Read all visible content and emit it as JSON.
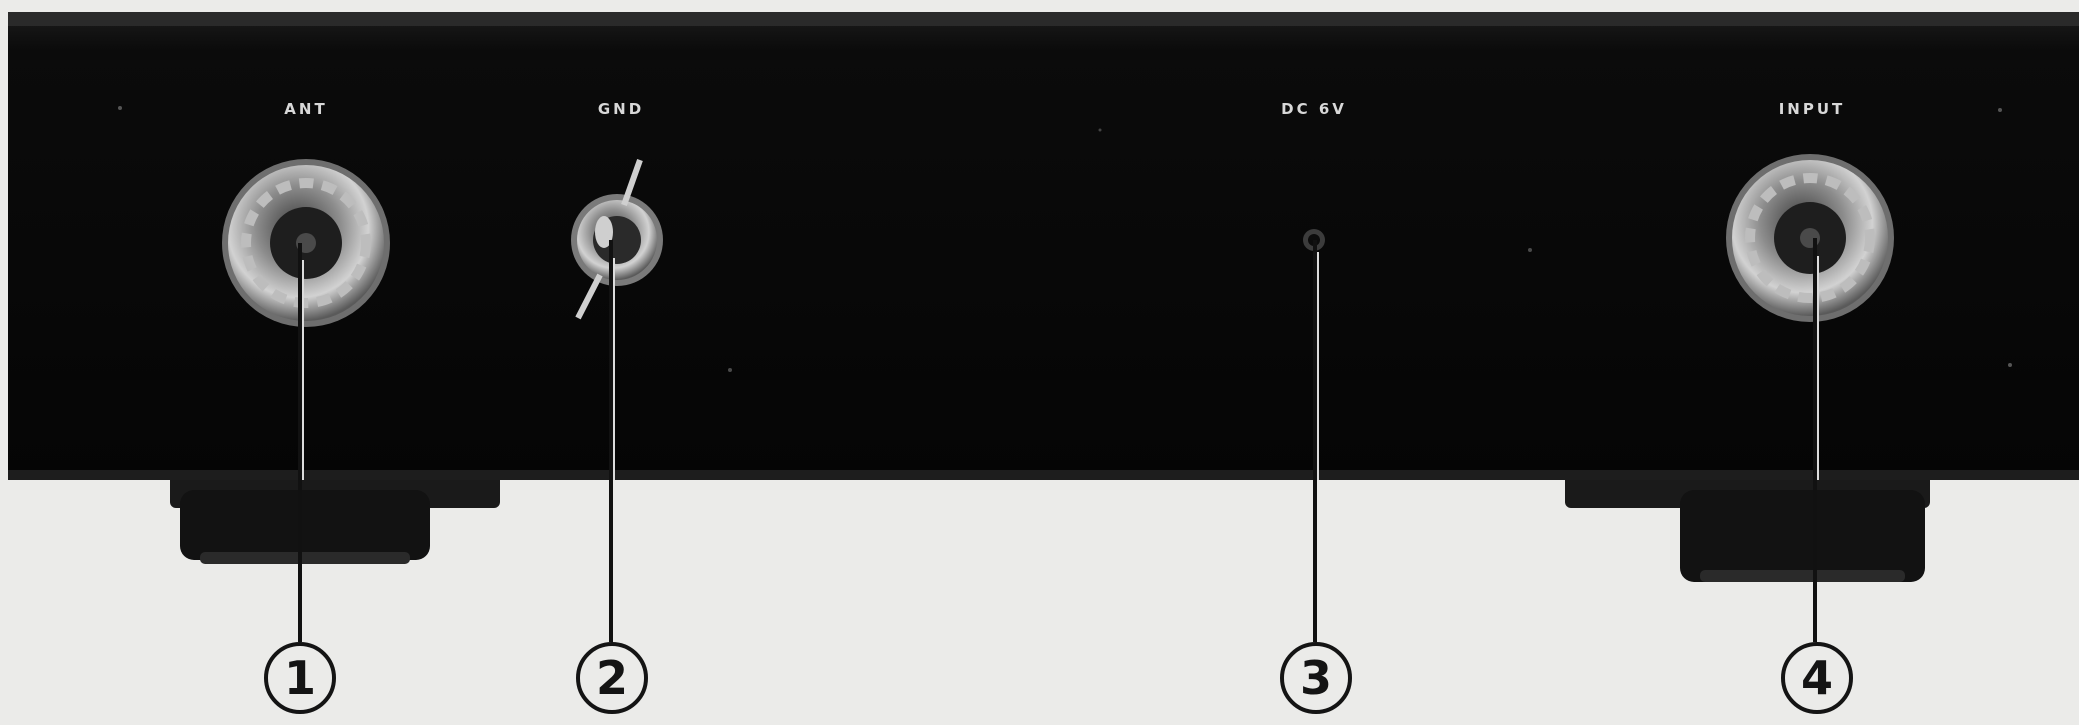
{
  "panel_labels": {
    "ant": "ANT",
    "gnd": "GND",
    "dc": "DC 6V",
    "input": "INPUT"
  },
  "callouts": {
    "c1": "1",
    "c2": "2",
    "c3": "3",
    "c4": "4"
  }
}
